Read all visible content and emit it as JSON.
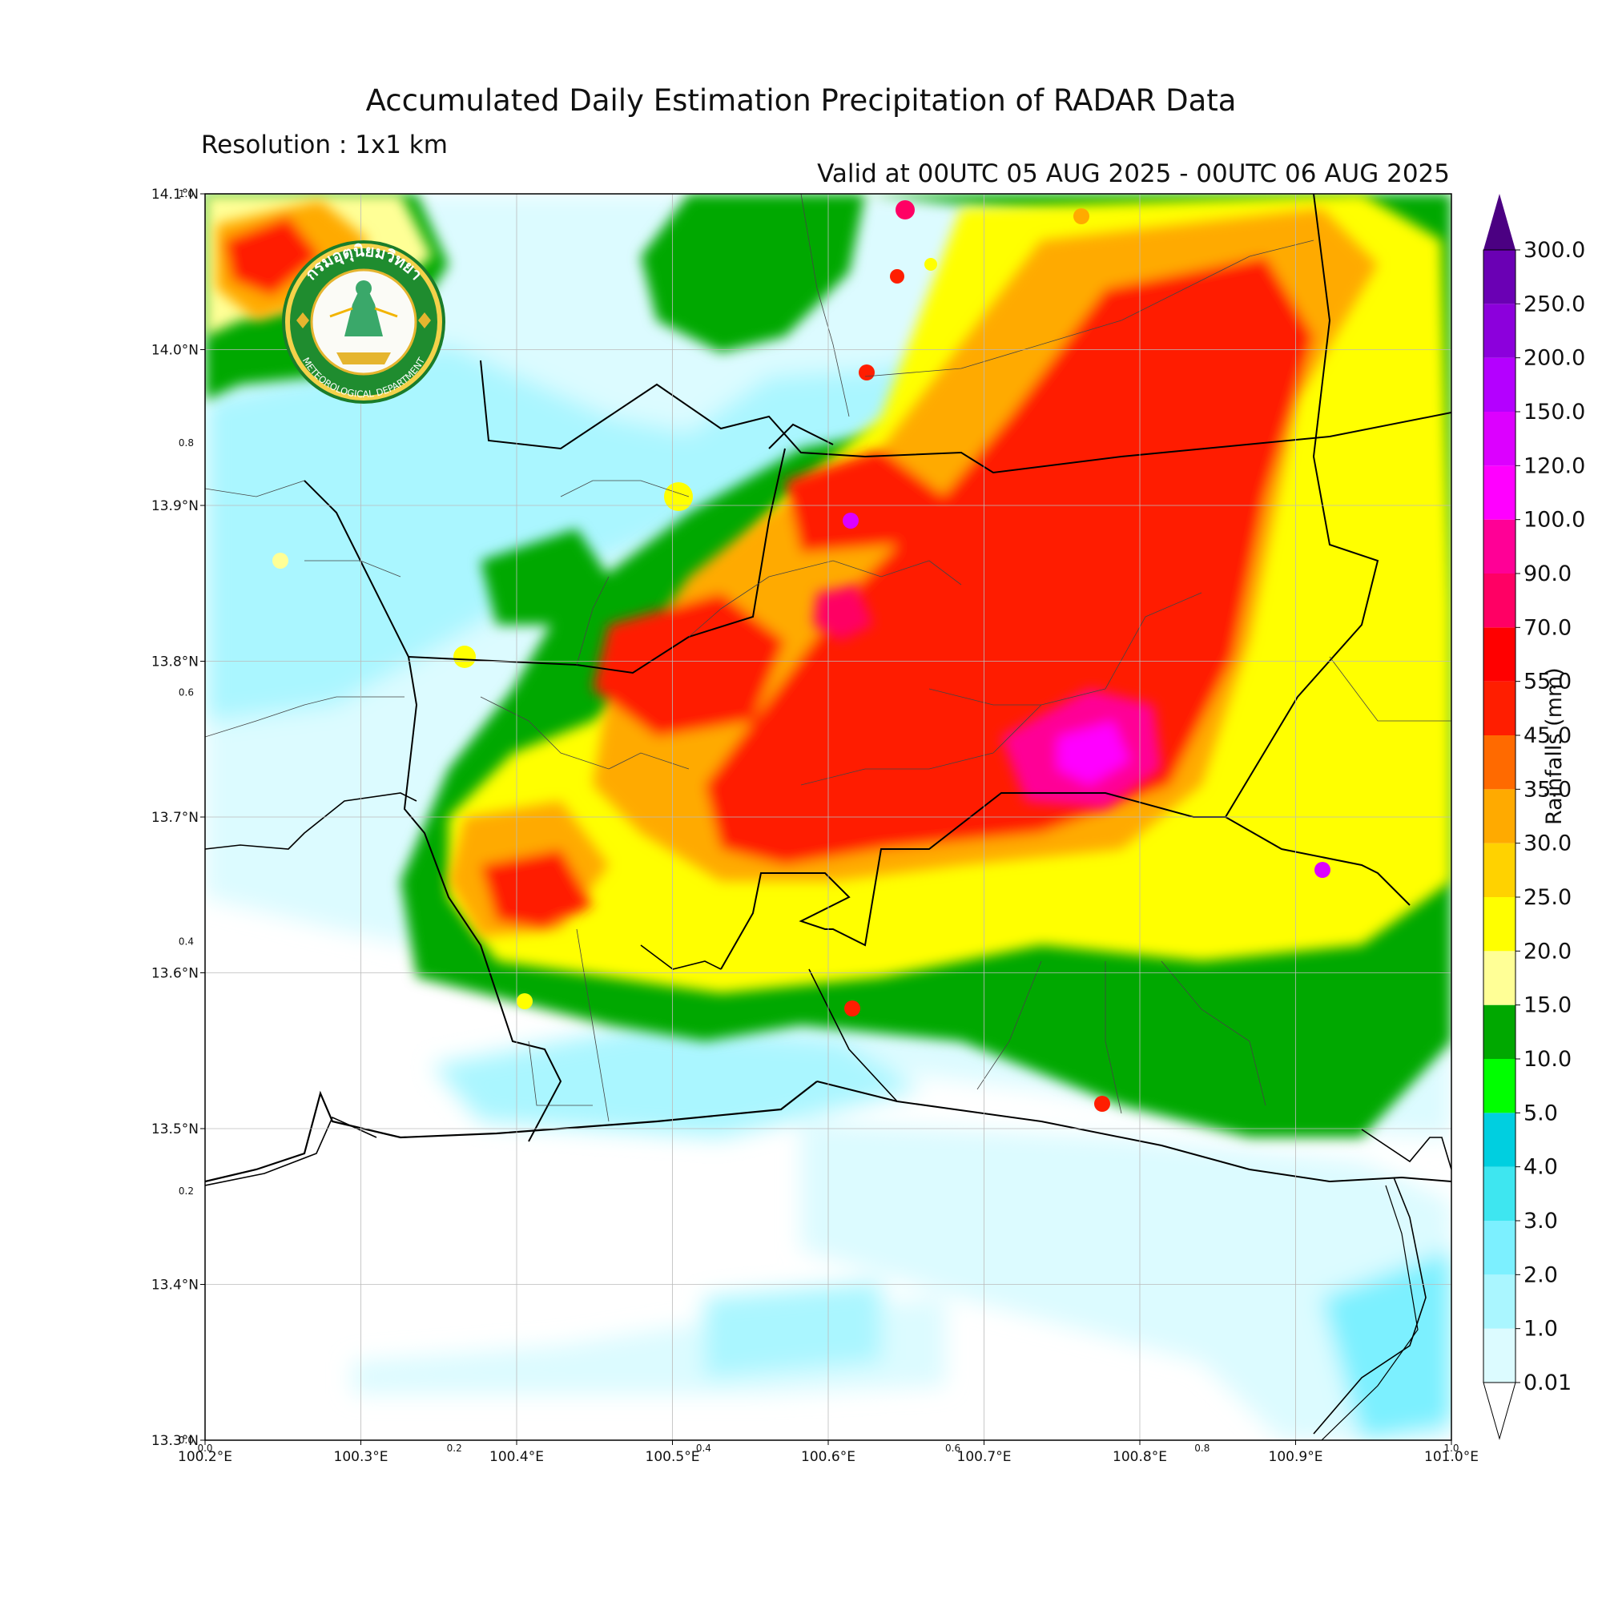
{
  "title": "Accumulated Daily Estimation Precipitation of RADAR Data",
  "subtitle": "Resolution : 1x1 km",
  "valid_text": "Valid at 00UTC 05 AUG 2025 - 00UTC 06 AUG 2025",
  "logo": {
    "text_top": "กรมอุตุนิยมวิทยา",
    "text_bottom": "METEOROLOGICAL DEPARTMENT"
  },
  "colorbar": {
    "label": "Rainfalls (mm)",
    "levels": [
      "0.01",
      "1.0",
      "2.0",
      "3.0",
      "4.0",
      "5.0",
      "10.0",
      "15.0",
      "20.0",
      "25.0",
      "30.0",
      "35.0",
      "45.0",
      "55.0",
      "70.0",
      "90.0",
      "100.0",
      "120.0",
      "150.0",
      "200.0",
      "250.0",
      "300.0"
    ],
    "colors": [
      "#dcfbff",
      "#aaf6ff",
      "#7cf0ff",
      "#3ee6f0",
      "#00cfe0",
      "#00ff00",
      "#00a800",
      "#ffff96",
      "#ffff00",
      "#ffd200",
      "#ffaa00",
      "#ff6a00",
      "#ff1e00",
      "#ff0000",
      "#ff0064",
      "#ff0096",
      "#ff00ff",
      "#dc00ff",
      "#b400ff",
      "#8c00dc",
      "#6a00b4"
    ],
    "extend_max_color": "#4b0082"
  },
  "axes": {
    "x_ticks": [
      "100.2°E",
      "100.3°E",
      "100.4°E",
      "100.5°E",
      "100.6°E",
      "100.7°E",
      "100.8°E",
      "100.9°E",
      "101.0°E"
    ],
    "y_ticks": [
      "14.1°N",
      "14.0°N",
      "13.9°N",
      "13.8°N",
      "13.7°N",
      "13.6°N",
      "13.5°N",
      "13.4°N",
      "13.3°N"
    ],
    "x_small": [
      "0.0",
      "0.2",
      "0.4",
      "0.6",
      "0.8",
      "1.0"
    ],
    "y_small": [
      "1.0",
      "0.8",
      "0.6",
      "0.4",
      "0.2",
      "0.0"
    ]
  }
}
